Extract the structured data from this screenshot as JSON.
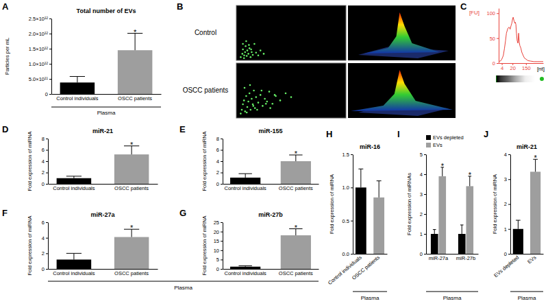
{
  "chart_data": [
    {
      "panel": "A",
      "type": "bar",
      "title": "Total number of EVs",
      "y_label": "Particles per mL",
      "categories": [
        "Control individuals",
        "OSCC patients"
      ],
      "values": [
        380000000000,
        1450000000000
      ],
      "errors": [
        200000000000,
        560000000000
      ],
      "colors": [
        "#000000",
        "#9e9e9e"
      ],
      "significance": [
        null,
        "*"
      ],
      "ylim": [
        0,
        2500000000000
      ],
      "yticks": [
        0,
        {
          "value": 500000000000,
          "label": "5.0×10¹¹"
        },
        {
          "value": 1000000000000,
          "label": "1.0×10¹²"
        },
        {
          "value": 1500000000000,
          "label": "1.5×10¹²"
        },
        {
          "value": 2000000000000,
          "label": "2.0×10¹²"
        },
        {
          "value": 2500000000000,
          "label": "2.5×10¹²"
        }
      ],
      "group_label": "Plasma"
    },
    {
      "panel": "B",
      "type": "scatter",
      "tick_labels": false,
      "xlim": [
        0,
        1000
      ],
      "ylim": [
        0,
        1000
      ],
      "series": [
        {
          "name": "Control",
          "color": "#66ee66",
          "x": [
            40,
            55,
            60,
            72,
            80,
            85,
            95,
            100,
            110,
            120,
            130,
            140,
            150,
            165,
            180,
            200,
            220,
            250,
            90,
            70,
            115,
            60,
            135
          ],
          "values": [
            60,
            120,
            200,
            90,
            150,
            260,
            80,
            180,
            120,
            220,
            60,
            150,
            100,
            300,
            140,
            90,
            180,
            120,
            350,
            40,
            280,
            300,
            200
          ]
        },
        {
          "name": "OSCC patients",
          "color": "#66ee66",
          "x": [
            40,
            50,
            60,
            70,
            80,
            90,
            100,
            110,
            120,
            130,
            140,
            150,
            160,
            170,
            180,
            200,
            220,
            240,
            260,
            280,
            300,
            330,
            360,
            400,
            450,
            500,
            75,
            95,
            125,
            155,
            190,
            230,
            270,
            310,
            350
          ],
          "values": [
            80,
            150,
            250,
            320,
            120,
            400,
            200,
            300,
            450,
            150,
            350,
            250,
            500,
            180,
            380,
            280,
            420,
            220,
            350,
            300,
            480,
            260,
            400,
            320,
            450,
            380,
            550,
            100,
            600,
            220,
            150,
            500,
            260,
            180,
            420
          ]
        }
      ]
    },
    {
      "panel": "C",
      "type": "line",
      "y_label": "[FU]",
      "x_label": "[nt]",
      "log": "x",
      "color": "#e8413a",
      "x": [
        2.6,
        3,
        3.5,
        4,
        5,
        6,
        7,
        8,
        10,
        12,
        14,
        16,
        18,
        20,
        22,
        25,
        28,
        30,
        33,
        36,
        40,
        45,
        50,
        55,
        60,
        70,
        80,
        100,
        120,
        150,
        200,
        300,
        500,
        800,
        1200,
        2000
      ],
      "values": [
        3,
        4,
        5,
        8,
        15,
        30,
        45,
        60,
        70,
        72,
        68,
        75,
        80,
        88,
        92,
        85,
        80,
        82,
        78,
        60,
        45,
        40,
        60,
        42,
        35,
        30,
        22,
        15,
        10,
        8,
        5,
        4,
        3,
        3,
        3,
        3
      ],
      "xlim": [
        2.5,
        2000
      ],
      "xticks": [
        4,
        20,
        150
      ],
      "ylim": [
        0,
        110
      ],
      "yticks": [
        0,
        50,
        100
      ]
    },
    {
      "panel": "D",
      "type": "bar",
      "title": "miR-21",
      "y_label": "Fold expression of miRNA",
      "categories": [
        "Control individuals",
        "OSCC patients"
      ],
      "values": [
        1.0,
        5.2
      ],
      "errors": [
        0.35,
        1.5
      ],
      "colors": [
        "#000000",
        "#9e9e9e"
      ],
      "significance": [
        null,
        "*"
      ],
      "ylim": [
        0,
        8
      ],
      "yticks": [
        0,
        2,
        4,
        6,
        8
      ]
    },
    {
      "panel": "E",
      "type": "bar",
      "title": "miR-155",
      "y_label": "Fold expression of miRNA",
      "categories": [
        "Control individuals",
        "OSCC patients"
      ],
      "values": [
        1.1,
        4.0
      ],
      "errors": [
        0.7,
        1.1
      ],
      "colors": [
        "#000000",
        "#9e9e9e"
      ],
      "significance": [
        null,
        "*"
      ],
      "ylim": [
        0,
        8
      ],
      "yticks": [
        0,
        2,
        4,
        6,
        8
      ]
    },
    {
      "panel": "F",
      "type": "bar",
      "title": "miR-27a",
      "y_label": "Fold expression of miRNA",
      "categories": [
        "Control individuals",
        "OSCC patients"
      ],
      "values": [
        1.2,
        4.1
      ],
      "errors": [
        0.8,
        1.0
      ],
      "colors": [
        "#000000",
        "#9e9e9e"
      ],
      "significance": [
        null,
        "*"
      ],
      "ylim": [
        0,
        6
      ],
      "yticks": [
        0,
        2,
        4,
        6
      ],
      "group_label": "Plasma"
    },
    {
      "panel": "G",
      "type": "bar",
      "title": "miR-27b",
      "y_label": "Fold expression of miRNA",
      "categories": [
        "Control individuals",
        "OSCC patients"
      ],
      "values": [
        1.2,
        18.0
      ],
      "errors": [
        0.5,
        3.5
      ],
      "colors": [
        "#000000",
        "#9e9e9e"
      ],
      "significance": [
        null,
        "*"
      ],
      "ylim": [
        0,
        25
      ],
      "yticks": [
        0,
        5,
        10,
        15,
        20,
        25
      ]
    },
    {
      "panel": "H",
      "type": "bar",
      "title": "miR-16",
      "y_label": "Fold expression of miRNA",
      "categories": [
        "Control individuals",
        "OSCC patients"
      ],
      "values": [
        1.0,
        0.85
      ],
      "errors": [
        0.28,
        0.25
      ],
      "colors": [
        "#000000",
        "#9e9e9e"
      ],
      "ylim": [
        0,
        1.5
      ],
      "yticks": [
        {
          "value": 0,
          "label": "0.0"
        },
        0.5,
        {
          "value": 1,
          "label": "1.0"
        },
        1.5
      ],
      "group_label": "Plasma"
    },
    {
      "panel": "I",
      "type": "bar",
      "y_label": "Fold expression of miRNAs",
      "legend": "top-left",
      "categories": [
        "miR-27a",
        "miR-27b"
      ],
      "series": [
        {
          "name": "EVs depleted",
          "color": "#000000",
          "values": [
            1.0,
            1.0
          ],
          "errors": [
            0.22,
            0.45
          ]
        },
        {
          "name": "EVs",
          "color": "#9e9e9e",
          "values": [
            3.9,
            3.4
          ],
          "errors": [
            0.45,
            0.5
          ],
          "significance": [
            "*",
            "*"
          ]
        }
      ],
      "ylim": [
        0,
        5
      ],
      "yticks": [
        0,
        1,
        2,
        3,
        4,
        5
      ],
      "group_label": "Plasma"
    },
    {
      "panel": "J",
      "type": "bar",
      "title": "miR-21",
      "y_label": "Fold expression of miRNA",
      "categories": [
        "EVs depleted",
        "EVs"
      ],
      "values": [
        1.0,
        3.3
      ],
      "errors": [
        0.35,
        0.5
      ],
      "colors": [
        "#000000",
        "#9e9e9e"
      ],
      "significance": [
        null,
        "*"
      ],
      "ylim": [
        0,
        4
      ],
      "yticks": [
        0,
        1,
        2,
        3,
        4
      ],
      "group_label": "Plasma"
    }
  ]
}
